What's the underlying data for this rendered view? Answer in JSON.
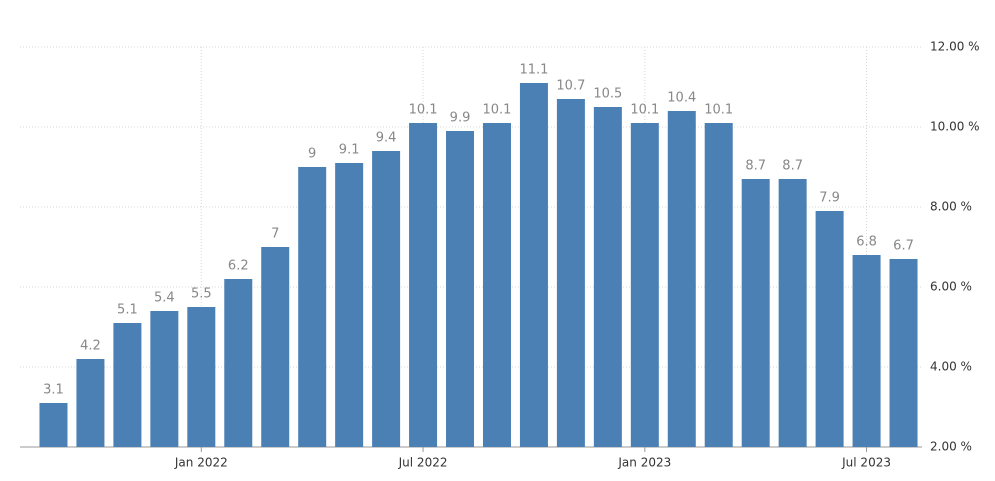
{
  "chart_data": {
    "type": "bar",
    "categories": [
      null,
      null,
      null,
      null,
      "Jan 2022",
      null,
      null,
      null,
      null,
      null,
      "Jul 2022",
      null,
      null,
      null,
      null,
      null,
      "Jan 2023",
      null,
      null,
      null,
      null,
      null,
      "Jul 2023",
      null
    ],
    "values": [
      3.1,
      4.2,
      5.1,
      5.4,
      5.5,
      6.2,
      7,
      9,
      9.1,
      9.4,
      10.1,
      9.9,
      10.1,
      11.1,
      10.7,
      10.5,
      10.1,
      10.4,
      10.1,
      8.7,
      8.7,
      7.9,
      6.8,
      6.7
    ],
    "color": "#4a80b4",
    "ylim": [
      2,
      12
    ],
    "yticks": [
      {
        "value": 2,
        "label": "2.00 %"
      },
      {
        "value": 4,
        "label": "4.00 %"
      },
      {
        "value": 6,
        "label": "6.00 %"
      },
      {
        "value": 8,
        "label": "8.00 %"
      },
      {
        "value": 10,
        "label": "10.00 %"
      },
      {
        "value": 12,
        "label": "12.00 %"
      }
    ],
    "grid": true
  }
}
